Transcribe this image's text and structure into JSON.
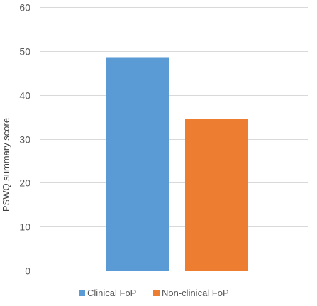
{
  "chart_data": {
    "type": "bar",
    "title": "",
    "xlabel": "",
    "ylabel": "PSWQ summary score",
    "ylim": [
      0,
      60
    ],
    "yticks": [
      0,
      10,
      20,
      30,
      40,
      50,
      60
    ],
    "grid": true,
    "legend_position": "bottom",
    "series": [
      {
        "name": "Clinical FoP",
        "value": 48.6,
        "color": "#5B9BD5"
      },
      {
        "name": "Non-clinical FoP",
        "value": 34.5,
        "color": "#ED7D31"
      }
    ],
    "gridline_color": "#D9D9D9",
    "text_color": "#595959"
  }
}
